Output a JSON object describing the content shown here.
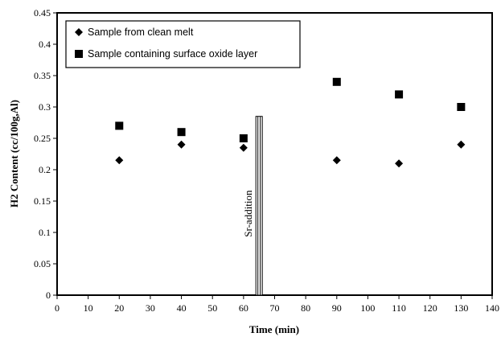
{
  "chart_data": {
    "type": "scatter",
    "title": "",
    "xlabel": "Time (min)",
    "ylabel": "H2 Content (cc/100g,Al)",
    "xlim": [
      0,
      140
    ],
    "ylim": [
      0,
      0.45
    ],
    "xticks": [
      "0",
      "10",
      "20",
      "30",
      "40",
      "50",
      "60",
      "70",
      "80",
      "90",
      "100",
      "110",
      "120",
      "130",
      "140"
    ],
    "yticks": [
      "0",
      "0.05",
      "0.1",
      "0.15",
      "0.2",
      "0.25",
      "0.3",
      "0.35",
      "0.4",
      "0.45"
    ],
    "grid": false,
    "legend": "top-left",
    "series": [
      {
        "name": "Sample from clean melt",
        "marker": "diamond",
        "color": "#000000",
        "x": [
          20,
          40,
          60,
          90,
          110,
          130
        ],
        "y": [
          0.215,
          0.24,
          0.235,
          0.215,
          0.21,
          0.24
        ]
      },
      {
        "name": "Sample containing surface oxide layer",
        "marker": "square",
        "color": "#000000",
        "x": [
          20,
          40,
          60,
          90,
          110,
          130
        ],
        "y": [
          0.27,
          0.26,
          0.25,
          0.34,
          0.32,
          0.3
        ]
      }
    ],
    "annotations": [
      {
        "text": "Sr-addition",
        "x": 65,
        "y_from": 0,
        "y_to": 0.285
      }
    ]
  }
}
